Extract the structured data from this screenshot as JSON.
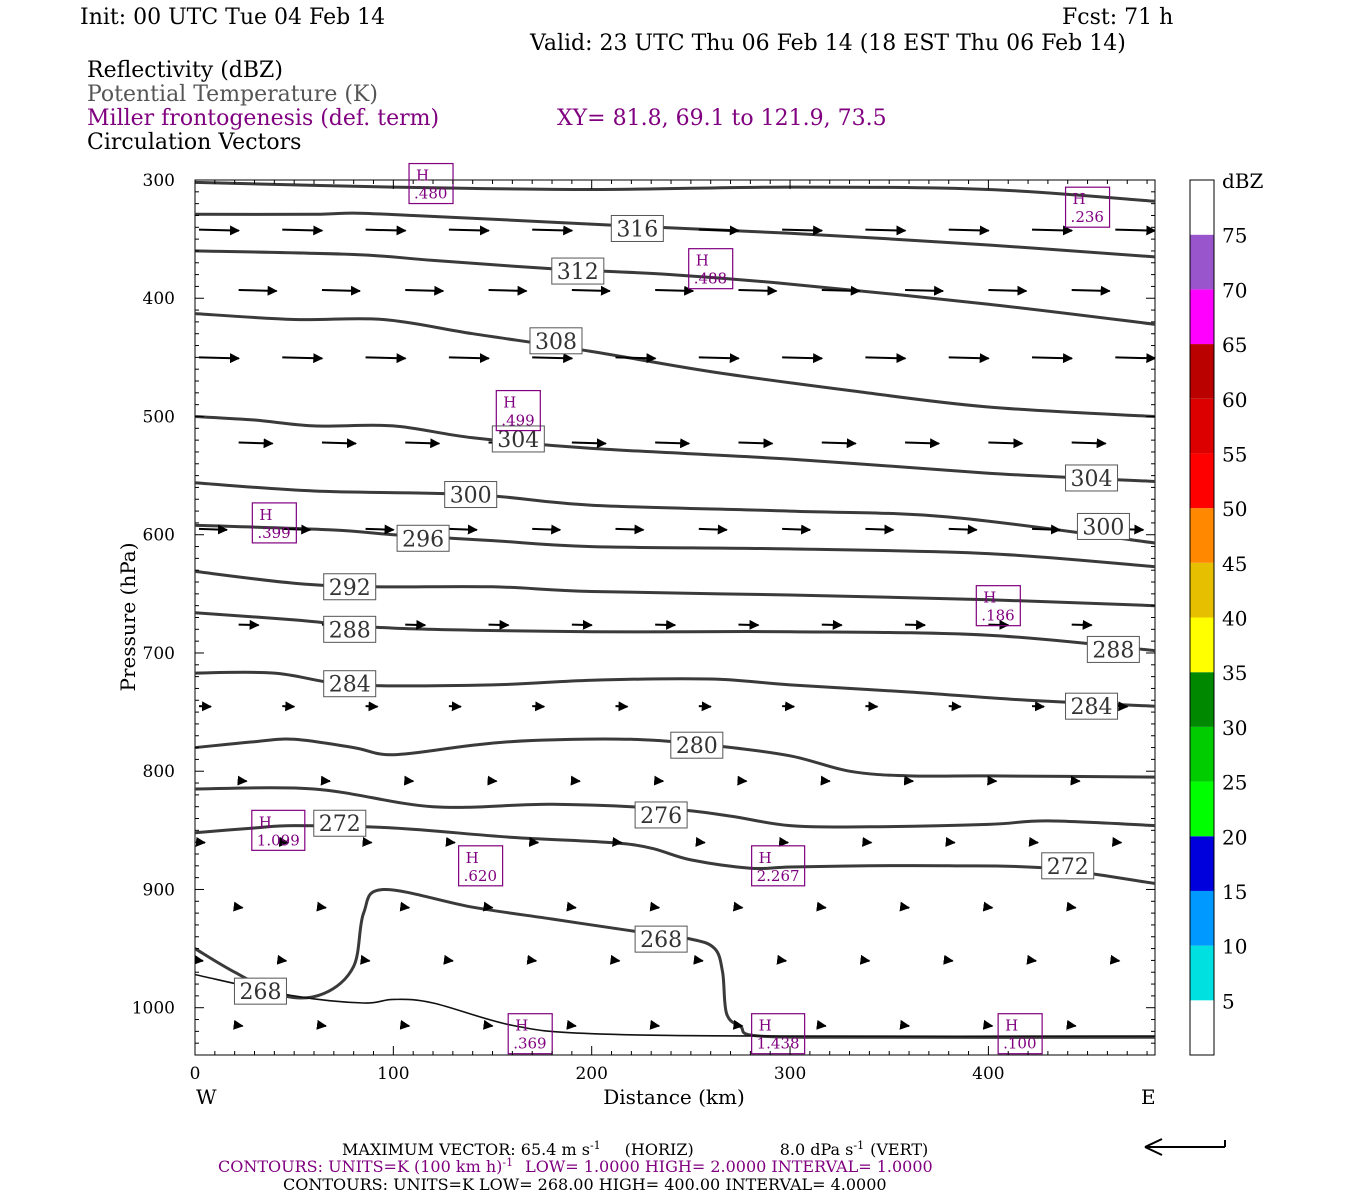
{
  "header": {
    "init": "Init: 00 UTC Tue 04 Feb 14",
    "fcst": "Fcst:   71 h",
    "valid": "Valid: 23 UTC Thu 06 Feb 14 (18 EST Thu 06 Feb 14)"
  },
  "fields": [
    {
      "label": "Reflectivity (dBZ)",
      "color": "#000000"
    },
    {
      "label": "Potential Temperature (K)",
      "color": "#555555"
    },
    {
      "label": "Miller frontogenesis (def. term)",
      "color": "#800080"
    },
    {
      "label": "Circulation Vectors",
      "color": "#000000"
    }
  ],
  "xy_text": "XY=  81.8, 69.1 to 121.9, 73.5",
  "colorbar": {
    "title": "dBZ",
    "labels": [
      "5",
      "10",
      "15",
      "20",
      "25",
      "30",
      "35",
      "40",
      "45",
      "50",
      "55",
      "60",
      "65",
      "70",
      "75"
    ],
    "colors": [
      "#ffffff",
      "#00e0e0",
      "#0099ff",
      "#0000dd",
      "#00ff00",
      "#00cc00",
      "#008800",
      "#ffff00",
      "#e6bf00",
      "#ff8800",
      "#ff0000",
      "#dd0000",
      "#bb0000",
      "#ff00ff",
      "#9955cc",
      "#ffffff"
    ]
  },
  "footer": {
    "max_vector": "MAXIMUM VECTOR:  65.4 m s",
    "horiz": "(HORIZ)",
    "vert_val": "8.0 dPa s",
    "vert": "(VERT)",
    "exp": "-1",
    "contours1": "CONTOURS:  UNITS=K (100 km h)",
    "contours1b": "LOW=   1.0000        HIGH=  2.0000        INTERVAL=    1.0000",
    "contours2": "CONTOURS:  UNITS=K   LOW=   268.00         HIGH=   400.00         INTERVAL=     4.0000"
  },
  "chart_data": {
    "type": "cross-section",
    "xlabel": "Distance (km)",
    "ylabel": "Pressure (hPa)",
    "xlim": [
      0,
      484
    ],
    "ylim": [
      1040,
      300
    ],
    "x_ticks": [
      0,
      100,
      200,
      300,
      400
    ],
    "y_ticks": [
      300,
      400,
      500,
      600,
      700,
      800,
      900,
      1000
    ],
    "x_end_labels": {
      "left": "W",
      "right": "E"
    },
    "theta_contours": [
      {
        "value": "",
        "points": [
          [
            0,
            302
          ],
          [
            100,
            306
          ],
          [
            200,
            308
          ],
          [
            300,
            306
          ],
          [
            400,
            308
          ],
          [
            484,
            318
          ]
        ]
      },
      {
        "value": "316",
        "points": [
          [
            0,
            329
          ],
          [
            60,
            329
          ],
          [
            80,
            328
          ],
          [
            110,
            330
          ],
          [
            160,
            334
          ],
          [
            220,
            339
          ],
          [
            300,
            345
          ],
          [
            400,
            355
          ],
          [
            484,
            365
          ]
        ]
      },
      {
        "value": "312",
        "points": [
          [
            0,
            360
          ],
          [
            80,
            363
          ],
          [
            120,
            368
          ],
          [
            180,
            375
          ],
          [
            240,
            380
          ],
          [
            300,
            388
          ],
          [
            400,
            405
          ],
          [
            484,
            422
          ]
        ]
      },
      {
        "value": "308",
        "points": [
          [
            0,
            413
          ],
          [
            50,
            418
          ],
          [
            95,
            418
          ],
          [
            140,
            430
          ],
          [
            200,
            445
          ],
          [
            260,
            462
          ],
          [
            330,
            478
          ],
          [
            400,
            492
          ],
          [
            484,
            500
          ]
        ]
      },
      {
        "value": "304",
        "points": [
          [
            0,
            500
          ],
          [
            30,
            503
          ],
          [
            60,
            508
          ],
          [
            100,
            508
          ],
          [
            140,
            518
          ],
          [
            200,
            527
          ],
          [
            300,
            536
          ],
          [
            400,
            548
          ],
          [
            484,
            555
          ]
        ]
      },
      {
        "value": "300",
        "points": [
          [
            0,
            556
          ],
          [
            60,
            563
          ],
          [
            140,
            566
          ],
          [
            200,
            575
          ],
          [
            300,
            580
          ],
          [
            380,
            585
          ],
          [
            484,
            607
          ]
        ]
      },
      {
        "value": "296",
        "points": [
          [
            0,
            592
          ],
          [
            70,
            596
          ],
          [
            100,
            600
          ],
          [
            150,
            605
          ],
          [
            200,
            610
          ],
          [
            300,
            612
          ],
          [
            400,
            616
          ],
          [
            484,
            627
          ]
        ]
      },
      {
        "value": "292",
        "points": [
          [
            0,
            631
          ],
          [
            50,
            641
          ],
          [
            90,
            644
          ],
          [
            150,
            644
          ],
          [
            200,
            648
          ],
          [
            300,
            651
          ],
          [
            400,
            655
          ],
          [
            484,
            660
          ]
        ]
      },
      {
        "value": "288",
        "points": [
          [
            0,
            666
          ],
          [
            50,
            672
          ],
          [
            100,
            679
          ],
          [
            200,
            682
          ],
          [
            300,
            682
          ],
          [
            400,
            685
          ],
          [
            484,
            698
          ]
        ]
      },
      {
        "value": "284",
        "points": [
          [
            0,
            717
          ],
          [
            40,
            717
          ],
          [
            80,
            727
          ],
          [
            150,
            727
          ],
          [
            200,
            723
          ],
          [
            260,
            722
          ],
          [
            300,
            727
          ],
          [
            360,
            733
          ],
          [
            420,
            740
          ],
          [
            484,
            745
          ]
        ]
      },
      {
        "value": "280",
        "points": [
          [
            0,
            780
          ],
          [
            30,
            775
          ],
          [
            50,
            773
          ],
          [
            80,
            780
          ],
          [
            100,
            786
          ],
          [
            140,
            778
          ],
          [
            170,
            774
          ],
          [
            220,
            773
          ],
          [
            260,
            778
          ],
          [
            300,
            787
          ],
          [
            330,
            800
          ],
          [
            360,
            804
          ],
          [
            400,
            804
          ],
          [
            484,
            805
          ]
        ]
      },
      {
        "value": "276",
        "points": [
          [
            0,
            815
          ],
          [
            60,
            815
          ],
          [
            120,
            830
          ],
          [
            180,
            828
          ],
          [
            240,
            832
          ],
          [
            270,
            838
          ],
          [
            300,
            846
          ],
          [
            340,
            847
          ],
          [
            400,
            845
          ],
          [
            430,
            842
          ],
          [
            484,
            846
          ]
        ]
      },
      {
        "value": "272",
        "points": [
          [
            0,
            852
          ],
          [
            30,
            848
          ],
          [
            50,
            846
          ],
          [
            100,
            848
          ],
          [
            160,
            856
          ],
          [
            220,
            862
          ],
          [
            250,
            875
          ],
          [
            280,
            882
          ],
          [
            300,
            881
          ],
          [
            340,
            880
          ],
          [
            380,
            880
          ],
          [
            430,
            882
          ],
          [
            484,
            895
          ]
        ]
      },
      {
        "value": "268",
        "points": [
          [
            0,
            950
          ],
          [
            20,
            970
          ],
          [
            45,
            990
          ],
          [
            65,
            988
          ],
          [
            80,
            965
          ],
          [
            85,
            920
          ],
          [
            95,
            900
          ],
          [
            140,
            915
          ],
          [
            180,
            925
          ],
          [
            220,
            935
          ],
          [
            250,
            942
          ],
          [
            262,
            950
          ],
          [
            266,
            970
          ],
          [
            268,
            1005
          ],
          [
            275,
            1016
          ],
          [
            285,
            1024
          ],
          [
            350,
            1025
          ],
          [
            484,
            1025
          ]
        ]
      },
      {
        "value": "",
        "points": [
          [
            0,
            972
          ],
          [
            50,
            990
          ],
          [
            85,
            996
          ],
          [
            100,
            993
          ],
          [
            120,
            996
          ],
          [
            160,
            1015
          ],
          [
            200,
            1022
          ],
          [
            300,
            1024
          ],
          [
            484,
            1024
          ]
        ]
      }
    ],
    "contour_labels": [
      {
        "text": "316",
        "x": 223,
        "p": 341
      },
      {
        "text": "312",
        "x": 193,
        "p": 377
      },
      {
        "text": "308",
        "x": 182,
        "p": 436
      },
      {
        "text": "304",
        "x": 163,
        "p": 519
      },
      {
        "text": "304",
        "x": 452,
        "p": 552
      },
      {
        "text": "300",
        "x": 139,
        "p": 566
      },
      {
        "text": "300",
        "x": 458,
        "p": 593
      },
      {
        "text": "296",
        "x": 115,
        "p": 603
      },
      {
        "text": "292",
        "x": 78,
        "p": 644
      },
      {
        "text": "288",
        "x": 78,
        "p": 680
      },
      {
        "text": "288",
        "x": 463,
        "p": 697
      },
      {
        "text": "284",
        "x": 78,
        "p": 726
      },
      {
        "text": "284",
        "x": 452,
        "p": 745
      },
      {
        "text": "280",
        "x": 253,
        "p": 778
      },
      {
        "text": "276",
        "x": 235,
        "p": 837
      },
      {
        "text": "272",
        "x": 73,
        "p": 844
      },
      {
        "text": "272",
        "x": 440,
        "p": 880
      },
      {
        "text": "268",
        "x": 235,
        "p": 942
      },
      {
        "text": "268",
        "x": 33,
        "p": 986
      }
    ],
    "frontogenesis_maxima": [
      {
        "label": "H",
        "value": ".480",
        "x": 119,
        "p": 303
      },
      {
        "label": "H",
        "value": ".236",
        "x": 450,
        "p": 323
      },
      {
        "label": "H",
        "value": ".488",
        "x": 260,
        "p": 375
      },
      {
        "label": "H",
        "value": ".499",
        "x": 163,
        "p": 495
      },
      {
        "label": "H",
        "value": ".399",
        "x": 40,
        "p": 590
      },
      {
        "label": "H",
        "value": ".186",
        "x": 405,
        "p": 660
      },
      {
        "label": "H",
        "value": "1.099",
        "x": 42,
        "p": 850
      },
      {
        "label": "H",
        "value": ".620",
        "x": 144,
        "p": 880
      },
      {
        "label": "H",
        "value": "2.267",
        "x": 294,
        "p": 880
      },
      {
        "label": "H",
        "value": ".369",
        "x": 169,
        "p": 1022
      },
      {
        "label": "H",
        "value": "1.438",
        "x": 294,
        "p": 1022
      },
      {
        "label": "H",
        "value": ".100",
        "x": 416,
        "p": 1022
      }
    ],
    "vector_rows": [
      {
        "p": 342,
        "len": 20
      },
      {
        "p": 393,
        "len": 19
      },
      {
        "p": 450,
        "len": 20
      },
      {
        "p": 522,
        "len": 17
      },
      {
        "p": 595,
        "len": 14
      },
      {
        "p": 676,
        "len": 10
      },
      {
        "p": 745,
        "len": 6
      },
      {
        "p": 808,
        "len": 4
      },
      {
        "p": 860,
        "len": 3
      },
      {
        "p": 915,
        "len": 2
      },
      {
        "p": 960,
        "len": 2
      },
      {
        "p": 1015,
        "len": 2
      }
    ]
  }
}
